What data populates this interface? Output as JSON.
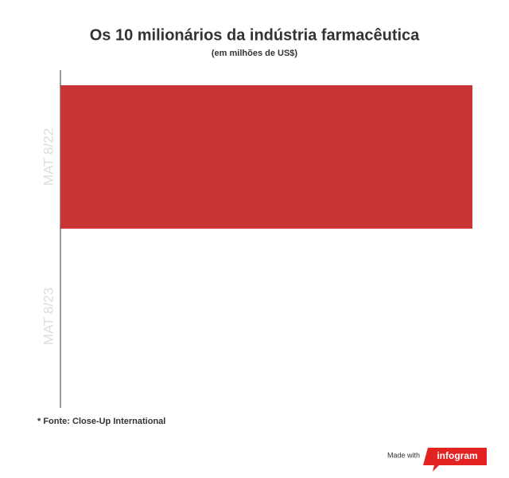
{
  "chart_data": {
    "type": "hbar",
    "title": "Os 10 milionários da indústria farmacêutica",
    "subtitle": "(em milhões de US$)",
    "categories": [
      "MAT 8/22",
      "MAT 8/23"
    ],
    "values": [
      100,
      null
    ],
    "color": "#c93434",
    "source": "* Fonte: Close-Up International"
  },
  "footer": {
    "made_with": "Made with",
    "brand": "infogram"
  }
}
